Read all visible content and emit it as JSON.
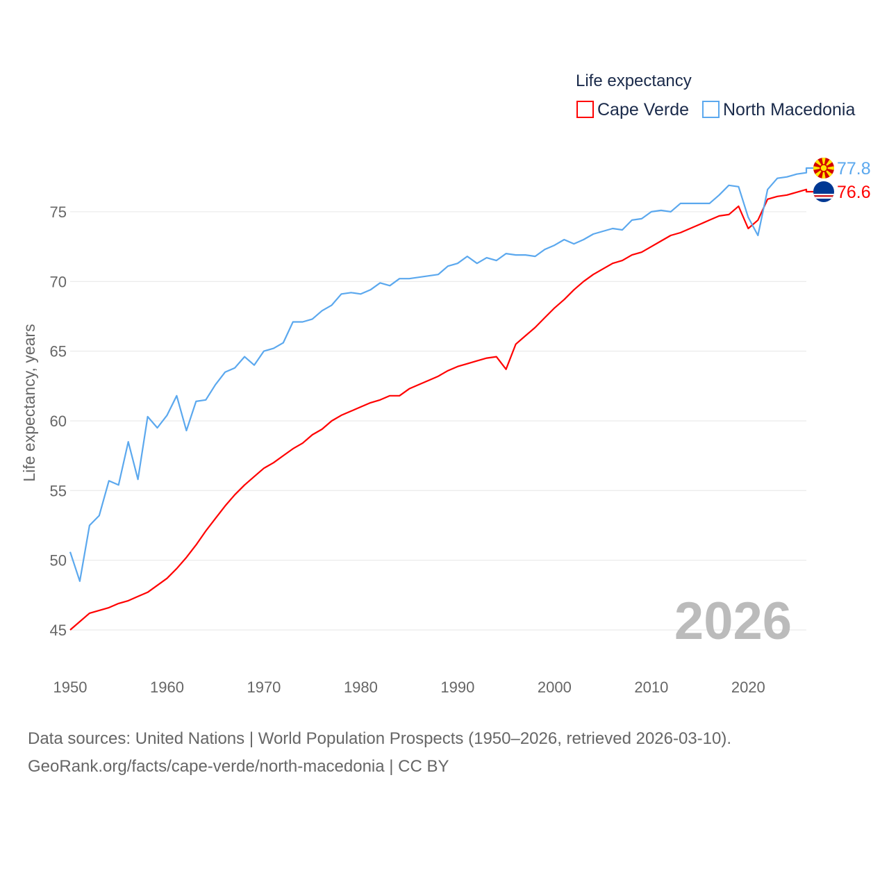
{
  "chart_data": {
    "type": "line",
    "title": "",
    "xlabel": "",
    "ylabel": "Life expectancy, years",
    "xlim": [
      1950,
      2026
    ],
    "ylim": [
      45,
      78.5
    ],
    "xticks": [
      1950,
      1960,
      1970,
      1980,
      1990,
      2000,
      2010,
      2020
    ],
    "yticks": [
      45,
      50,
      55,
      60,
      65,
      70,
      75
    ],
    "grid": true,
    "legend": {
      "title": "Life expectancy",
      "placement": "top-right"
    },
    "year_watermark": "2026",
    "x": [
      1950,
      1951,
      1952,
      1953,
      1954,
      1955,
      1956,
      1957,
      1958,
      1959,
      1960,
      1961,
      1962,
      1963,
      1964,
      1965,
      1966,
      1967,
      1968,
      1969,
      1970,
      1971,
      1972,
      1973,
      1974,
      1975,
      1976,
      1977,
      1978,
      1979,
      1980,
      1981,
      1982,
      1983,
      1984,
      1985,
      1986,
      1987,
      1988,
      1989,
      1990,
      1991,
      1992,
      1993,
      1994,
      1995,
      1996,
      1997,
      1998,
      1999,
      2000,
      2001,
      2002,
      2003,
      2004,
      2005,
      2006,
      2007,
      2008,
      2009,
      2010,
      2011,
      2012,
      2013,
      2014,
      2015,
      2016,
      2017,
      2018,
      2019,
      2020,
      2021,
      2022,
      2023,
      2024,
      2025,
      2026
    ],
    "series": [
      {
        "name": "Cape Verde",
        "color": "#ff0000",
        "end_label": "76.6",
        "flag": "cape-verde",
        "values": [
          45.0,
          45.6,
          46.2,
          46.4,
          46.6,
          46.9,
          47.1,
          47.4,
          47.7,
          48.2,
          48.7,
          49.4,
          50.2,
          51.1,
          52.1,
          53.0,
          53.9,
          54.7,
          55.4,
          56.0,
          56.6,
          57.0,
          57.5,
          58.0,
          58.4,
          59.0,
          59.4,
          60.0,
          60.4,
          60.7,
          61.0,
          61.3,
          61.5,
          61.8,
          61.8,
          62.3,
          62.6,
          62.9,
          63.2,
          63.6,
          63.9,
          64.1,
          64.3,
          64.5,
          64.6,
          63.7,
          65.5,
          66.1,
          66.7,
          67.4,
          68.1,
          68.7,
          69.4,
          70.0,
          70.5,
          70.9,
          71.3,
          71.5,
          71.9,
          72.1,
          72.5,
          72.9,
          73.3,
          73.5,
          73.8,
          74.1,
          74.4,
          74.7,
          74.8,
          75.4,
          73.8,
          74.4,
          75.9,
          76.1,
          76.2,
          76.4,
          76.6
        ]
      },
      {
        "name": "North Macedonia",
        "color": "#5ba8ee",
        "end_label": "77.8",
        "flag": "north-macedonia",
        "values": [
          50.6,
          48.5,
          52.5,
          53.2,
          55.7,
          55.4,
          58.5,
          55.8,
          60.3,
          59.5,
          60.4,
          61.8,
          59.3,
          61.4,
          61.5,
          62.6,
          63.5,
          63.8,
          64.6,
          64.0,
          65.0,
          65.2,
          65.6,
          67.1,
          67.1,
          67.3,
          67.9,
          68.3,
          69.1,
          69.2,
          69.1,
          69.4,
          69.9,
          69.7,
          70.2,
          70.2,
          70.3,
          70.4,
          70.5,
          71.1,
          71.3,
          71.8,
          71.3,
          71.7,
          71.5,
          72.0,
          71.9,
          71.9,
          71.8,
          72.3,
          72.6,
          73.0,
          72.7,
          73.0,
          73.4,
          73.6,
          73.8,
          73.7,
          74.4,
          74.5,
          75.0,
          75.1,
          75.0,
          75.6,
          75.6,
          75.6,
          75.6,
          76.2,
          76.9,
          76.8,
          74.6,
          73.3,
          76.6,
          77.4,
          77.5,
          77.7,
          77.8
        ]
      }
    ]
  },
  "source": {
    "line1": "Data sources: United Nations | World Population Prospects (1950–2026, retrieved 2026-03-10).",
    "line2": "GeoRank.org/facts/cape-verde/north-macedonia | CC BY"
  }
}
